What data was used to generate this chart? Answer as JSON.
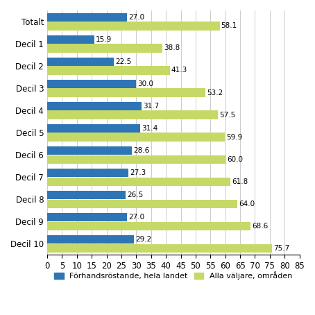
{
  "categories": [
    "Totalt",
    "Decil 1",
    "Decil 2",
    "Decil 3",
    "Decil 4",
    "Decil 5",
    "Decil 6",
    "Decil 7",
    "Decil 8",
    "Decil 9",
    "Decil 10"
  ],
  "blue_values": [
    27.0,
    15.9,
    22.5,
    30.0,
    31.7,
    31.4,
    28.6,
    27.3,
    26.5,
    27.0,
    29.2
  ],
  "green_values": [
    58.1,
    38.8,
    41.3,
    53.2,
    57.5,
    59.9,
    60.0,
    61.8,
    64.0,
    68.6,
    75.7
  ],
  "blue_color": "#2E75B6",
  "green_color": "#C5D966",
  "xlim": [
    0,
    85
  ],
  "xticks": [
    0,
    5,
    10,
    15,
    20,
    25,
    30,
    35,
    40,
    45,
    50,
    55,
    60,
    65,
    70,
    75,
    80,
    85
  ],
  "legend_blue": "Förhandsröstande, hela landet",
  "legend_green": "Alla väljare, områden",
  "background_color": "#ffffff",
  "grid_color": "#cccccc",
  "label_fontsize": 8.5,
  "tick_fontsize": 8.5,
  "value_fontsize": 7.5
}
